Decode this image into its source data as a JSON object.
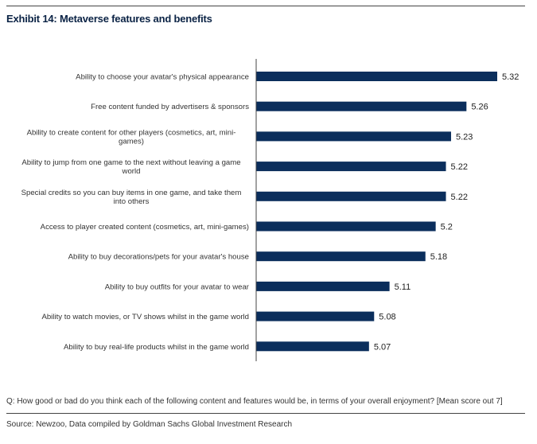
{
  "header": {
    "title": "Exhibit 14: Metaverse features and benefits"
  },
  "footer": {
    "question": "Q: How good or bad do you think each of the following content and features would be, in terms of your overall enjoyment? [Mean score out 7]",
    "source": "Source: Newzoo, Data compiled by Goldman Sachs Global Investment Research"
  },
  "colors": {
    "bar": "#0b2e5c",
    "axis": "#444444"
  },
  "chart_data": {
    "type": "bar",
    "orientation": "horizontal",
    "title": "Exhibit 14: Metaverse features and benefits",
    "xlabel": "",
    "ylabel": "",
    "xlim": [
      4.85,
      5.35
    ],
    "grid": false,
    "categories": [
      [
        "Ability to choose your avatar's physical appearance"
      ],
      [
        "Free content funded by advertisers & sponsors"
      ],
      [
        "Ability to create content for other players (cosmetics, art, mini-",
        "games)"
      ],
      [
        "Ability to jump from one game to the next without leaving a game",
        "world"
      ],
      [
        "Special credits so you can buy items in one game, and take them",
        "into others"
      ],
      [
        "Access to player created content (cosmetics, art, mini-games)"
      ],
      [
        "Ability to buy decorations/pets for your avatar's house"
      ],
      [
        "Ability to buy outfits for your avatar to wear"
      ],
      [
        "Ability to watch movies, or TV shows whilst in the game world"
      ],
      [
        "Ability to buy real-life products whilst in the game world"
      ]
    ],
    "values": [
      5.32,
      5.26,
      5.23,
      5.22,
      5.22,
      5.2,
      5.18,
      5.11,
      5.08,
      5.07
    ],
    "value_labels": [
      "5.32",
      "5.26",
      "5.23",
      "5.22",
      "5.22",
      "5.2",
      "5.18",
      "5.11",
      "5.08",
      "5.07"
    ]
  }
}
